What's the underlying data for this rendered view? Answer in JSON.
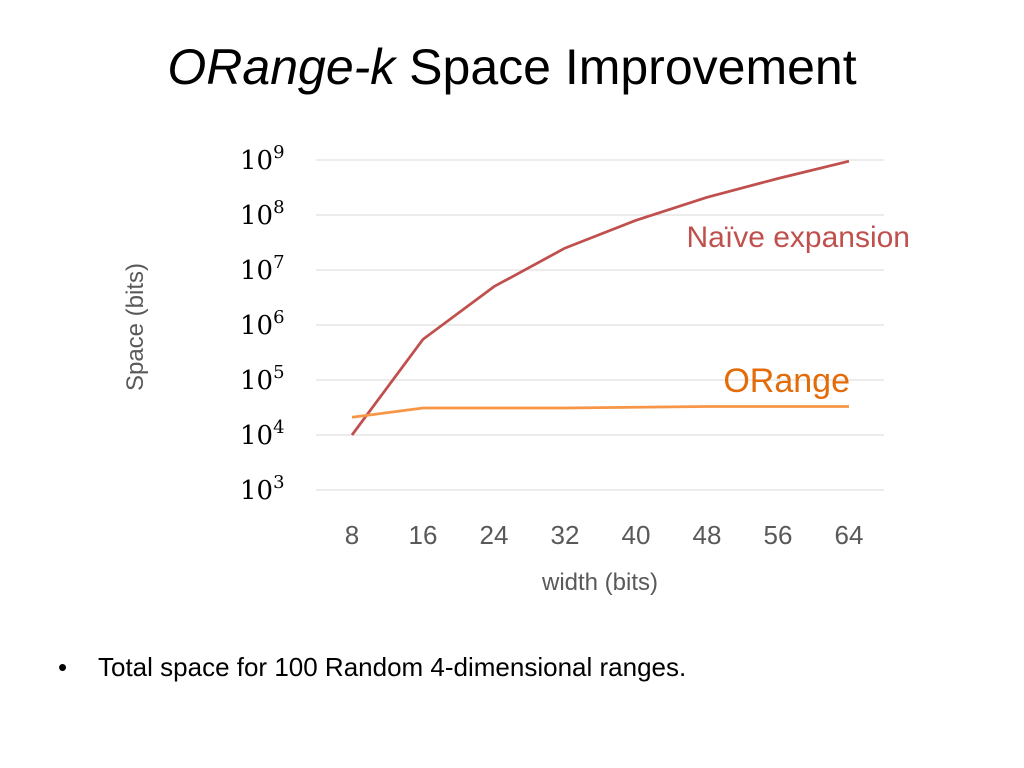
{
  "slide": {
    "title_italic": "ORange-k",
    "title_rest": " Space Improvement",
    "bullet": "Total space for 100 Random 4-dimensional ranges."
  },
  "chart_data": {
    "type": "line",
    "xlabel": "width (bits)",
    "ylabel": "Space (bits)",
    "y_scale": "log10",
    "ylim": [
      1000,
      1000000000
    ],
    "x": [
      8,
      16,
      24,
      32,
      40,
      48,
      56,
      64
    ],
    "y_ticks": [
      {
        "value": 1000000000,
        "base": "10",
        "exp": "9"
      },
      {
        "value": 100000000,
        "base": "10",
        "exp": "8"
      },
      {
        "value": 10000000,
        "base": "10",
        "exp": "7"
      },
      {
        "value": 1000000,
        "base": "10",
        "exp": "6"
      },
      {
        "value": 100000,
        "base": "10",
        "exp": "5"
      },
      {
        "value": 10000,
        "base": "10",
        "exp": "4"
      },
      {
        "value": 1000,
        "base": "10",
        "exp": "3"
      }
    ],
    "grid": true,
    "legend": "inline labels",
    "series": [
      {
        "name": "Naïve expansion",
        "color": "#c0504d",
        "values": [
          10000,
          550000,
          5000000,
          25000000,
          80000000,
          210000000,
          460000000,
          950000000
        ]
      },
      {
        "name": "ORange",
        "color": "#f79646",
        "label_color": "#e36c09",
        "values": [
          21000,
          31000,
          31000,
          31000,
          32000,
          33000,
          33000,
          33000
        ]
      }
    ]
  }
}
